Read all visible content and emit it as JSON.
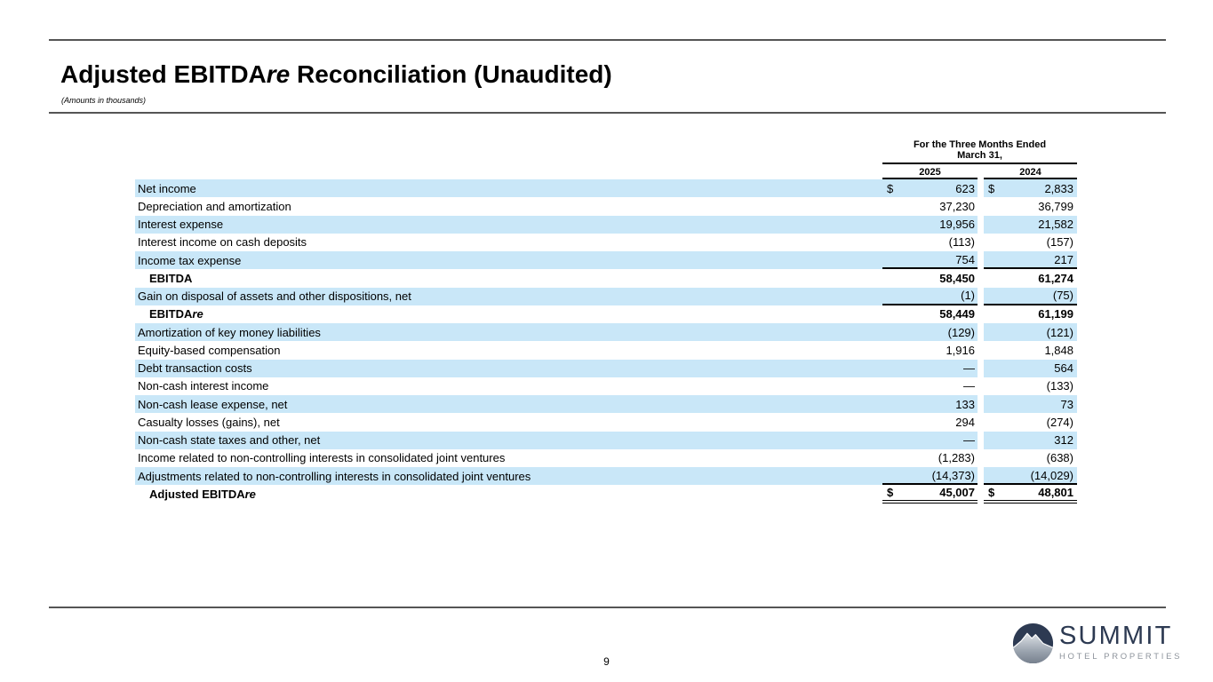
{
  "header": {
    "title_pre": "Adjusted EBITDA",
    "title_italic": "re",
    "title_post": " Reconciliation (Unaudited)",
    "subtitle": "(Amounts in thousands)"
  },
  "table": {
    "period_header_line1": "For the Three Months Ended",
    "period_header_line2": "March 31,",
    "columns": [
      "2025",
      "2024"
    ],
    "currency_symbol": "$",
    "rows": [
      {
        "label": "Net income",
        "v2025": "623",
        "v2024": "2,833",
        "dollar": true
      },
      {
        "label": "Depreciation and amortization",
        "v2025": "37,230",
        "v2024": "36,799"
      },
      {
        "label": "Interest expense",
        "v2025": "19,956",
        "v2024": "21,582"
      },
      {
        "label": "Interest income on cash deposits",
        "v2025": "(113)",
        "v2024": "(157)"
      },
      {
        "label": "Income tax expense",
        "v2025": "754",
        "v2024": "217",
        "rule": "bottom"
      },
      {
        "label": "EBITDA",
        "v2025": "58,450",
        "v2024": "61,274",
        "bold": true,
        "indent": true
      },
      {
        "label": "Gain on disposal of assets and other dispositions, net",
        "v2025": "(1)",
        "v2024": "(75)",
        "rule": "bottom"
      },
      {
        "label": "EBITDA",
        "label_italic": "re",
        "v2025": "58,449",
        "v2024": "61,199",
        "bold": true,
        "indent": true
      },
      {
        "label": "Amortization of key money liabilities",
        "v2025": "(129)",
        "v2024": "(121)"
      },
      {
        "label": "Equity-based compensation",
        "v2025": "1,916",
        "v2024": "1,848"
      },
      {
        "label": "Debt transaction costs",
        "v2025": "—",
        "v2024": "564"
      },
      {
        "label": "Non-cash interest income",
        "v2025": "—",
        "v2024": "(133)"
      },
      {
        "label": "Non-cash lease expense, net",
        "v2025": "133",
        "v2024": "73"
      },
      {
        "label": "Casualty losses (gains), net",
        "v2025": "294",
        "v2024": "(274)"
      },
      {
        "label": "Non-cash state taxes and other, net",
        "v2025": "—",
        "v2024": "312"
      },
      {
        "label": "Income related to non-controlling interests in consolidated joint ventures",
        "v2025": "(1,283)",
        "v2024": "(638)"
      },
      {
        "label": "Adjustments related to non-controlling interests in consolidated joint ventures",
        "v2025": "(14,373)",
        "v2024": "(14,029)",
        "rule": "bottom"
      },
      {
        "label": "Adjusted EBITDA",
        "label_italic": "re",
        "v2025": "45,007",
        "v2024": "48,801",
        "dollar": true,
        "bold": true,
        "indent": true,
        "rule": "double"
      }
    ]
  },
  "footer": {
    "page_number": "9"
  },
  "logo": {
    "name": "SUMMIT",
    "tagline": "HOTEL PROPERTIES"
  },
  "colors": {
    "row_highlight": "#c9e7f8",
    "divider": "#555555",
    "logo_navy": "#2d3a52",
    "logo_gray": "#8e949c"
  }
}
